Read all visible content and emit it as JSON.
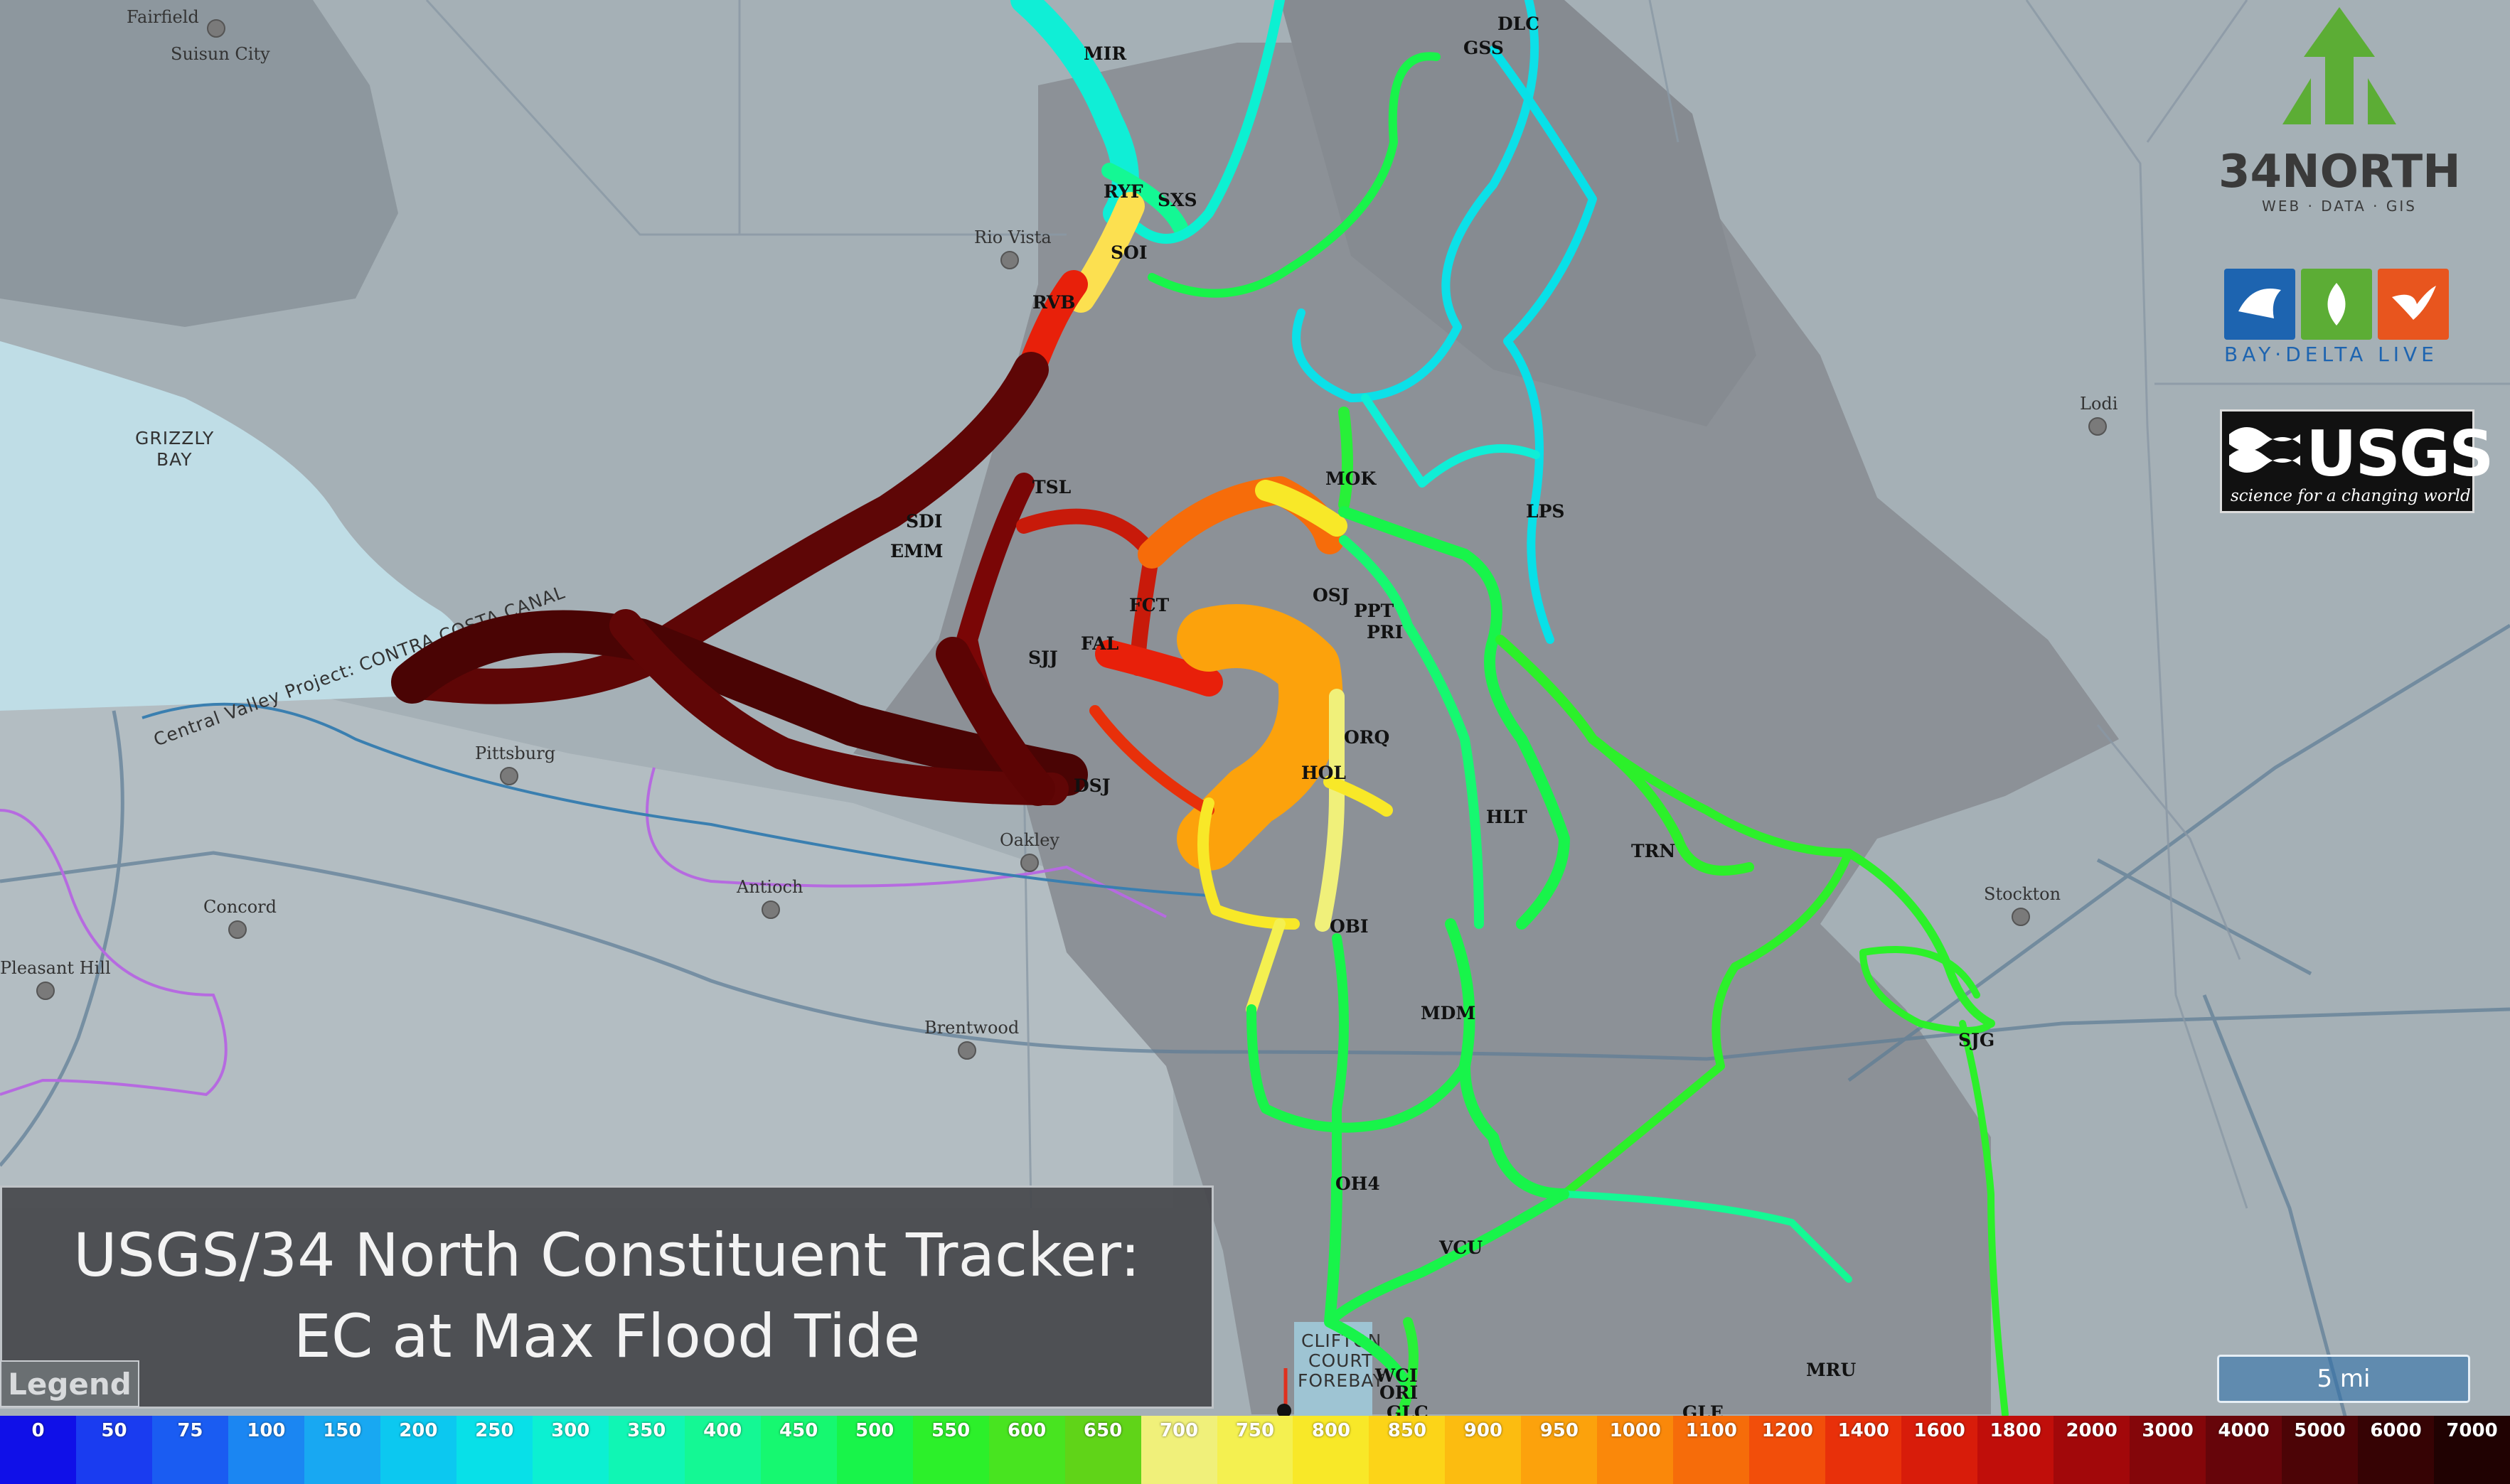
{
  "title": {
    "line1": "USGS/34 North Constituent Tracker:",
    "line2": "EC at Max Flood Tide"
  },
  "legend_button": "Legend",
  "scale_bar": "5 mi",
  "logos": {
    "north34": {
      "name": "34NORTH",
      "tagline": "WEB · DATA · GIS"
    },
    "baydelta": {
      "label": "BAY·DELTA LIVE"
    },
    "usgs": {
      "name": "USGS",
      "tagline": "science for a changing world"
    }
  },
  "water_labels": {
    "grizzly_bay": "GRIZZLY\nBAY",
    "forebay": "CLIFTON\nCOURT\nFOREBAY"
  },
  "canal_label": "Central Valley Project: CONTRA COSTA CANAL",
  "cities": [
    "Fairfield",
    "Suisun City",
    "Rio Vista",
    "Lodi",
    "Pittsburg",
    "Concord",
    "Pleasant Hill",
    "Antioch",
    "Oakley",
    "Brentwood",
    "Stockton"
  ],
  "stations": [
    "MIR",
    "DLC",
    "GSS",
    "RYF",
    "SXS",
    "SOI",
    "RVB",
    "TSL",
    "SDI",
    "EMM",
    "MOK",
    "LPS",
    "FCT",
    "OSJ",
    "PPT",
    "PRI",
    "SJJ",
    "FAL",
    "ORQ",
    "HOL",
    "DSJ",
    "HLT",
    "TRN",
    "OBI",
    "MDM",
    "SJG",
    "OH4",
    "VCU",
    "MRU",
    "WCI",
    "ORI",
    "GLC",
    "GLE"
  ],
  "colorbar": {
    "labels": [
      "0",
      "50",
      "75",
      "100",
      "150",
      "200",
      "250",
      "300",
      "350",
      "400",
      "450",
      "500",
      "550",
      "600",
      "650",
      "700",
      "750",
      "800",
      "850",
      "900",
      "950",
      "1000",
      "1100",
      "1200",
      "1400",
      "1600",
      "1800",
      "2000",
      "3000",
      "4000",
      "5000",
      "6000",
      "7000"
    ],
    "colors": [
      "#1010e8",
      "#1a3cf0",
      "#1a5cf2",
      "#1b86f2",
      "#18a8f2",
      "#0cc8f0",
      "#08e0e8",
      "#0cf0d2",
      "#10f6b4",
      "#14f894",
      "#16f870",
      "#18f44a",
      "#2cf02a",
      "#48e420",
      "#60d418",
      "#f0f07a",
      "#f4f050",
      "#f8e828",
      "#fcd418",
      "#fcbc10",
      "#fca20c",
      "#fa880a",
      "#f66c0a",
      "#f24e0a",
      "#e8300a",
      "#d81c0a",
      "#c00e0a",
      "#a2080a",
      "#84060a",
      "#66050a",
      "#4c0406",
      "#360304",
      "#200202"
    ]
  }
}
